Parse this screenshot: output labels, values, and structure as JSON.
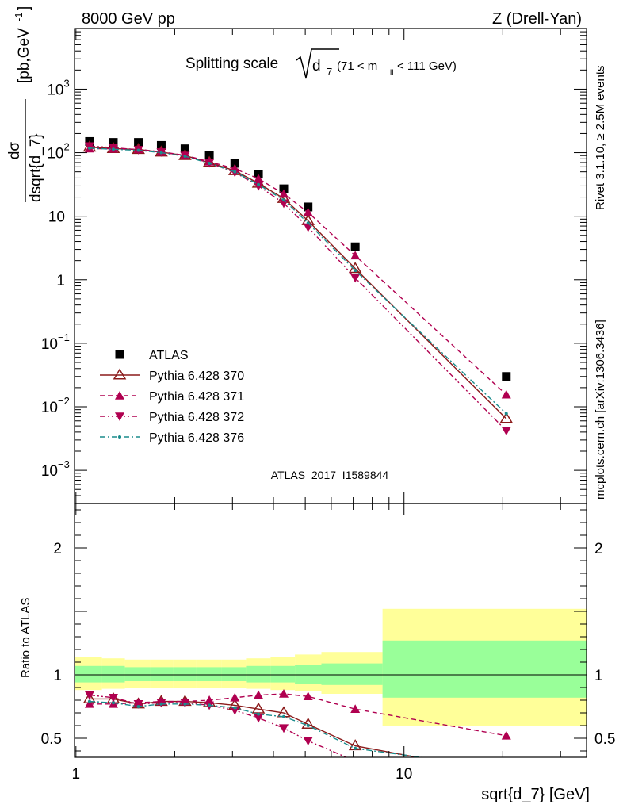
{
  "header": {
    "left": "8000 GeV pp",
    "right": "Z (Drell-Yan)"
  },
  "side_labels": {
    "rivet": "Rivet 3.1.10, ≥ 2.5M events",
    "mcplots": "mcplots.cern.ch [arXiv:1306.3436]"
  },
  "watermark": "ATLAS_2017_I1589844",
  "chart_data": [
    {
      "type": "scatter",
      "panel": "main",
      "title": "Splitting scale √d₇ (71 < mₗₗ < 111 GeV)",
      "title_main": "Splitting scale",
      "title_sqrt": "d",
      "title_sub": "7",
      "title_range_a": "(71 < m",
      "title_range_sub": "ll",
      "title_range_b": " < 111 GeV)",
      "ylabel": "dσ / dsqrt{d_7} [pb,GeV⁻¹]",
      "ylabel_num": "dσ",
      "ylabel_den": "dsqrt{d_7}",
      "ylabel_units": "[pb,GeV",
      "ylabel_sup": "-1",
      "ylabel_close": "]",
      "xscale": "log",
      "yscale": "log",
      "xlim": [
        0.99,
        36
      ],
      "ylim": [
        0.0003,
        9000
      ],
      "legend_position": "bottom-left",
      "y_ticks": [
        {
          "value": 0.001,
          "base": "10",
          "exp": "−3"
        },
        {
          "value": 0.01,
          "base": "10",
          "exp": "−2"
        },
        {
          "value": 0.1,
          "base": "10",
          "exp": "−1"
        },
        {
          "value": 1,
          "base": "1",
          "exp": ""
        },
        {
          "value": 10,
          "base": "10",
          "exp": ""
        },
        {
          "value": 100,
          "base": "10",
          "exp": "2"
        },
        {
          "value": 1000,
          "base": "10",
          "exp": "3"
        }
      ],
      "x": [
        1.1,
        1.3,
        1.55,
        1.82,
        2.15,
        2.55,
        3.05,
        3.6,
        4.3,
        5.1,
        7.1,
        20.5
      ],
      "series": [
        {
          "name": "ATLAS",
          "color": "#000000",
          "marker": "square",
          "line": "none",
          "values": [
            150,
            145,
            145,
            130,
            115,
            90,
            68,
            46,
            27,
            14,
            3.3,
            0.03
          ]
        },
        {
          "name": "Pythia 6.428 370",
          "color": "#8b1a1a",
          "marker": "triangle-up-open",
          "line": "solid",
          "values": [
            122,
            116,
            112,
            102,
            90,
            70,
            52,
            33,
            19,
            8.5,
            1.5,
            0.0065
          ]
        },
        {
          "name": "Pythia 6.428 371",
          "color": "#b00050",
          "marker": "triangle-up",
          "line": "dashed",
          "values": [
            116,
            115,
            113,
            103,
            91,
            72,
            56,
            39,
            22.5,
            11.5,
            2.4,
            0.0155
          ]
        },
        {
          "name": "Pythia 6.428 372",
          "color": "#b00050",
          "marker": "triangle-down",
          "line": "dashdotdot",
          "values": [
            127,
            120,
            111,
            102,
            90,
            69,
            49,
            30,
            16,
            6.7,
            1.07,
            0.0042
          ]
        },
        {
          "name": "Pythia 6.428 376",
          "color": "#1a8c8c",
          "marker": "dot",
          "line": "dashdot",
          "values": [
            118,
            113,
            109,
            100,
            88,
            68,
            50,
            31.5,
            18,
            7.8,
            1.4,
            0.0078
          ]
        }
      ]
    },
    {
      "type": "line",
      "panel": "ratio",
      "ylabel": "Ratio to ATLAS",
      "xlabel": "sqrt{d_7} [GeV]",
      "xscale": "log",
      "xlim": [
        0.99,
        36
      ],
      "ylim": [
        0.35,
        2.35
      ],
      "y_ticks": [
        0.5,
        1,
        2
      ],
      "x_ticks": [
        {
          "value": 1,
          "label": "1"
        },
        {
          "value": 10,
          "label": "10"
        }
      ],
      "bands": {
        "edges": [
          0.99,
          1.2,
          1.41,
          1.68,
          1.98,
          2.32,
          2.78,
          3.3,
          3.92,
          4.65,
          5.6,
          8.6,
          36
        ],
        "yellow": [
          [
            0.88,
            1.14
          ],
          [
            0.89,
            1.13
          ],
          [
            0.9,
            1.12
          ],
          [
            0.9,
            1.12
          ],
          [
            0.9,
            1.12
          ],
          [
            0.9,
            1.12
          ],
          [
            0.9,
            1.12
          ],
          [
            0.89,
            1.13
          ],
          [
            0.88,
            1.14
          ],
          [
            0.87,
            1.16
          ],
          [
            0.85,
            1.18
          ],
          [
            0.6,
            1.52
          ],
          [
            0.6,
            1.52
          ]
        ],
        "green": [
          [
            0.94,
            1.07
          ],
          [
            0.94,
            1.07
          ],
          [
            0.95,
            1.06
          ],
          [
            0.95,
            1.06
          ],
          [
            0.95,
            1.06
          ],
          [
            0.95,
            1.06
          ],
          [
            0.95,
            1.06
          ],
          [
            0.94,
            1.07
          ],
          [
            0.94,
            1.07
          ],
          [
            0.93,
            1.08
          ],
          [
            0.92,
            1.09
          ],
          [
            0.82,
            1.27
          ],
          [
            0.82,
            1.27
          ]
        ]
      },
      "x": [
        1.1,
        1.3,
        1.55,
        1.82,
        2.15,
        2.55,
        3.05,
        3.6,
        4.3,
        5.1,
        7.1,
        20.5
      ],
      "series": [
        {
          "name": "Pythia 6.428 370",
          "color": "#8b1a1a",
          "marker": "triangle-up-open",
          "line": "solid",
          "values": [
            0.81,
            0.81,
            0.77,
            0.79,
            0.79,
            0.78,
            0.76,
            0.73,
            0.7,
            0.61,
            0.44,
            0.22
          ]
        },
        {
          "name": "Pythia 6.428 371",
          "color": "#b00050",
          "marker": "triangle-up",
          "line": "dashed",
          "values": [
            0.77,
            0.77,
            0.78,
            0.79,
            0.79,
            0.8,
            0.82,
            0.84,
            0.85,
            0.83,
            0.73,
            0.52
          ]
        },
        {
          "name": "Pythia 6.428 372",
          "color": "#b00050",
          "marker": "triangle-down",
          "line": "dashdotdot",
          "values": [
            0.84,
            0.82,
            0.77,
            0.78,
            0.78,
            0.76,
            0.72,
            0.66,
            0.58,
            0.48,
            0.32,
            0.14
          ]
        },
        {
          "name": "Pythia 6.428 376",
          "color": "#1a8c8c",
          "marker": "dot",
          "line": "dashdot",
          "values": [
            0.79,
            0.78,
            0.75,
            0.77,
            0.77,
            0.76,
            0.74,
            0.69,
            0.67,
            0.6,
            0.42,
            0.26
          ]
        }
      ],
      "errors": {
        "Pythia 6.428 371": [
          0,
          0,
          0,
          0,
          0,
          0,
          0,
          0,
          0,
          0,
          0,
          0.03
        ]
      }
    }
  ]
}
